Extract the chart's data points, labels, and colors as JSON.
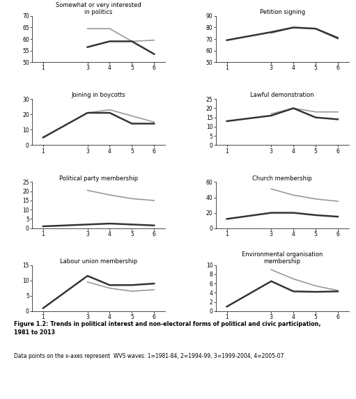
{
  "x_ticks": [
    1,
    3,
    4,
    5,
    6
  ],
  "subplots": [
    {
      "title": "Somewhat or very interested\nin politics",
      "ylim": [
        50,
        70
      ],
      "yticks": [
        50,
        55,
        60,
        65,
        70
      ],
      "lines": [
        {
          "x": [
            3,
            4,
            5,
            6
          ],
          "y": [
            64.5,
            64.5,
            59,
            59.5
          ],
          "color": "#999999",
          "lw": 1.2
        },
        {
          "x": [
            3,
            4,
            5,
            6
          ],
          "y": [
            56.5,
            59,
            59,
            53.5
          ],
          "color": "#333333",
          "lw": 1.8
        }
      ]
    },
    {
      "title": "Petition signing",
      "ylim": [
        50,
        90
      ],
      "yticks": [
        50,
        60,
        70,
        80,
        90
      ],
      "lines": [
        {
          "x": [
            1,
            3,
            4,
            5,
            6
          ],
          "y": [
            null,
            75,
            80,
            79,
            70
          ],
          "color": "#999999",
          "lw": 1.2
        },
        {
          "x": [
            1,
            3,
            4,
            5,
            6
          ],
          "y": [
            69,
            76,
            80,
            79,
            71
          ],
          "color": "#333333",
          "lw": 1.8
        }
      ]
    },
    {
      "title": "Joining in boycotts",
      "ylim": [
        0,
        30
      ],
      "yticks": [
        0,
        10,
        20,
        30
      ],
      "lines": [
        {
          "x": [
            1,
            3,
            4,
            5,
            6
          ],
          "y": [
            null,
            21,
            23,
            19,
            15
          ],
          "color": "#999999",
          "lw": 1.2
        },
        {
          "x": [
            1,
            3,
            4,
            5,
            6
          ],
          "y": [
            5,
            21,
            21,
            14,
            14
          ],
          "color": "#333333",
          "lw": 1.8
        }
      ]
    },
    {
      "title": "Lawful demonstration",
      "ylim": [
        0,
        25
      ],
      "yticks": [
        0,
        5,
        10,
        15,
        20,
        25
      ],
      "lines": [
        {
          "x": [
            1,
            3,
            4,
            5,
            6
          ],
          "y": [
            null,
            17,
            20,
            18,
            18
          ],
          "color": "#999999",
          "lw": 1.2
        },
        {
          "x": [
            1,
            3,
            4,
            5,
            6
          ],
          "y": [
            13,
            16,
            20,
            15,
            14
          ],
          "color": "#333333",
          "lw": 1.8
        }
      ]
    },
    {
      "title": "Political party membership",
      "ylim": [
        0,
        25
      ],
      "yticks": [
        0,
        5,
        10,
        15,
        20,
        25
      ],
      "lines": [
        {
          "x": [
            1,
            3,
            4,
            5,
            6
          ],
          "y": [
            null,
            20.5,
            18,
            16,
            15
          ],
          "color": "#999999",
          "lw": 1.2
        },
        {
          "x": [
            1,
            3,
            4,
            5,
            6
          ],
          "y": [
            1,
            2,
            2.5,
            2,
            1.5
          ],
          "color": "#333333",
          "lw": 1.8
        }
      ]
    },
    {
      "title": "Church membership",
      "ylim": [
        0,
        60
      ],
      "yticks": [
        0,
        20,
        40,
        60
      ],
      "lines": [
        {
          "x": [
            1,
            3,
            4,
            5,
            6
          ],
          "y": [
            null,
            51,
            43,
            38,
            35
          ],
          "color": "#999999",
          "lw": 1.2
        },
        {
          "x": [
            1,
            3,
            4,
            5,
            6
          ],
          "y": [
            12,
            20,
            20,
            17,
            15
          ],
          "color": "#333333",
          "lw": 1.8
        }
      ]
    },
    {
      "title": "Labour union membership",
      "ylim": [
        0,
        15
      ],
      "yticks": [
        0,
        5,
        10,
        15
      ],
      "lines": [
        {
          "x": [
            1,
            3,
            4,
            5,
            6
          ],
          "y": [
            null,
            9.5,
            7.5,
            6.5,
            7
          ],
          "color": "#999999",
          "lw": 1.2
        },
        {
          "x": [
            1,
            3,
            4,
            5,
            6
          ],
          "y": [
            1,
            11.5,
            8.5,
            8.5,
            9
          ],
          "color": "#333333",
          "lw": 1.8
        }
      ]
    },
    {
      "title": "Environmental organisation\nmembership",
      "ylim": [
        0,
        10
      ],
      "yticks": [
        0,
        2,
        4,
        6,
        8,
        10
      ],
      "lines": [
        {
          "x": [
            1,
            3,
            4,
            5,
            6
          ],
          "y": [
            null,
            9,
            7,
            5.5,
            4.5
          ],
          "color": "#999999",
          "lw": 1.2
        },
        {
          "x": [
            1,
            3,
            4,
            5,
            6
          ],
          "y": [
            1,
            6.5,
            4.3,
            4.2,
            4.3
          ],
          "color": "#333333",
          "lw": 1.8
        }
      ]
    }
  ],
  "caption_bold": "Figure 1.2: Trends in political interest and non-electoral forms of political and civic participation,\n1981 to 2013",
  "caption_normal": "Data points on the x-axes represent  WVS waves: 1=1981-84, 2=1994-99, 3=1999-2004, 4=2005-07",
  "background_color": "#ffffff",
  "title_fontsize": 6.0,
  "tick_fontsize": 5.5
}
